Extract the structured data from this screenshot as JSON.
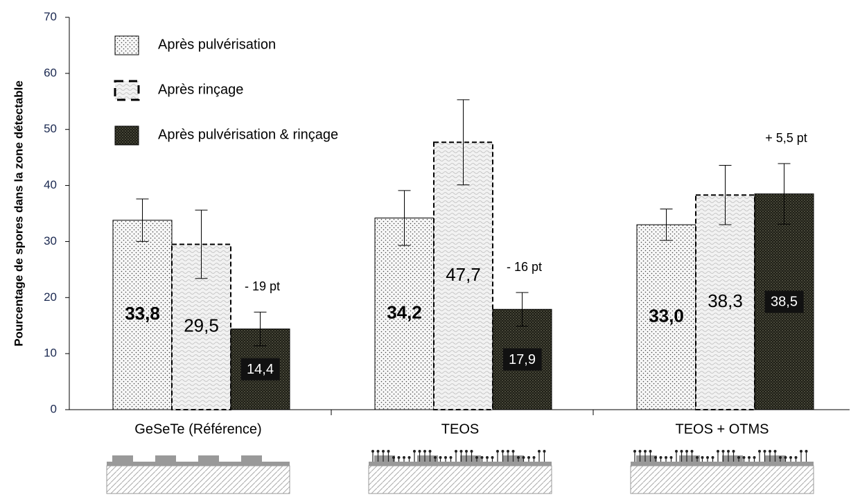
{
  "chart_data": {
    "type": "bar",
    "y_label": "Pourcentage de spores  dans la zone détectable",
    "categories": [
      "GeSeTe (Référence)",
      "TEOS",
      "TEOS + OTMS"
    ],
    "series": [
      {
        "name": "Après pulvérisation",
        "color": "#f4f4f4",
        "line_style": "solid",
        "values": [
          33.8,
          34.2,
          33.0
        ],
        "errors": [
          3.8,
          4.9,
          2.8
        ],
        "value_labels": [
          "33,8",
          "34,2",
          "33,0"
        ]
      },
      {
        "name": "Après rinçage",
        "color": "#eeeeee",
        "line_style": "dashed",
        "values": [
          29.5,
          47.7,
          38.3
        ],
        "errors": [
          6.1,
          7.6,
          5.3
        ],
        "value_labels": [
          "29,5",
          "47,7",
          "38,3"
        ]
      },
      {
        "name": "Après pulvérisation & rinçage",
        "color": "#2b2b22",
        "line_style": "solid",
        "values": [
          14.4,
          17.9,
          38.5
        ],
        "errors": [
          3.0,
          3.0,
          5.4
        ],
        "value_labels": [
          "14,4",
          "17,9",
          "38,5"
        ]
      }
    ],
    "annotations": [
      "- 19 pt",
      "- 16 pt",
      "+ 5,5 pt"
    ],
    "ylim": [
      0,
      70
    ],
    "yticks": [
      0,
      10,
      20,
      30,
      40,
      50,
      60,
      70
    ]
  }
}
